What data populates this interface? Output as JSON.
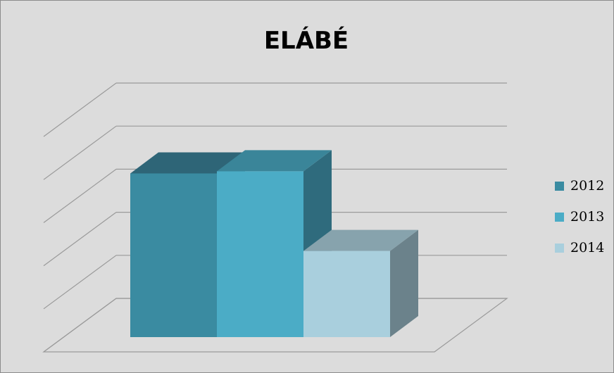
{
  "chart_data": {
    "type": "bar",
    "title": "ELÁBÉ",
    "series": [
      {
        "name": "2012",
        "values": [
          3.8
        ],
        "color": "#3A8BA1",
        "top_color": "#2E6577",
        "side_color": "#2E6577"
      },
      {
        "name": "2013",
        "values": [
          3.85
        ],
        "color": "#4BACC6",
        "top_color": "#3A8599",
        "side_color": "#2F6B7D"
      },
      {
        "name": "2014",
        "values": [
          2.0
        ],
        "color": "#A9CFDD",
        "top_color": "#87A3AD",
        "side_color": "#6B828B"
      }
    ],
    "ylim": [
      0,
      5
    ],
    "gridlines": true,
    "y_tick_labels_shown": false,
    "legend": {
      "position": "right"
    },
    "style": "3d-column"
  }
}
